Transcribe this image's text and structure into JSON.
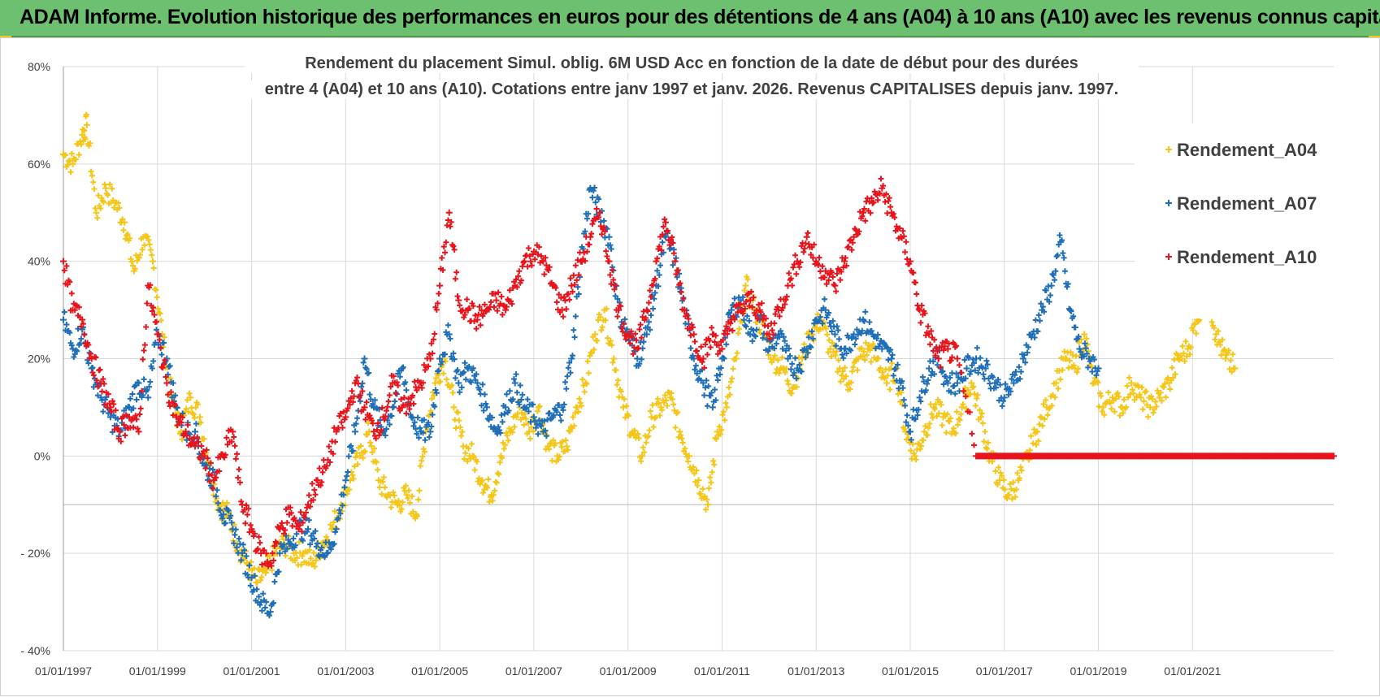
{
  "banner": {
    "title": "ADAM Informe. Evolution historique des performances en euros pour des détentions de 4 ans (A04) à 10 ans (A10) avec les revenus connus capitalisés"
  },
  "colors": {
    "banner_bg": "#6cc070",
    "a04": "#f5c518",
    "a07": "#1f6fb8",
    "a10": "#e8141c",
    "grid": "#d9d9d9",
    "axis_text": "#404040"
  },
  "chart_data": {
    "type": "scatter",
    "title_line1": "Rendement du placement Simul. oblig. 6M USD Acc en fonction de la date de début pour des durées",
    "title_line2": "entre 4 (A04) et 10 ans (A10). Cotations entre janv 1997 et janv. 2026. Revenus CAPITALISES depuis janv. 1997.",
    "xlabel": "",
    "ylabel": "",
    "x_range": [
      1997.0,
      2024.0
    ],
    "y_range": [
      -40,
      80
    ],
    "y_ticks": [
      80,
      60,
      40,
      20,
      0,
      -20,
      -40
    ],
    "y_tick_labels": [
      "80%",
      "60%",
      "40%",
      "20%",
      "0%",
      "- 20%",
      "- 40%"
    ],
    "x_ticks": [
      1997,
      1999,
      2001,
      2003,
      2005,
      2007,
      2009,
      2011,
      2013,
      2015,
      2017,
      2019,
      2021
    ],
    "x_tick_labels": [
      "01/01/1997",
      "01/01/1999",
      "01/01/2001",
      "01/01/2003",
      "01/01/2005",
      "01/01/2007",
      "01/01/2009",
      "01/01/2011",
      "01/01/2013",
      "01/01/2015",
      "01/01/2017",
      "01/01/2019",
      "01/01/2021"
    ],
    "legend_position": "right",
    "series": [
      {
        "name": "Rendement_A04",
        "color": "#f5c518",
        "x": [
          1997.0,
          1997.2,
          1997.4,
          1997.5,
          1997.7,
          1997.9,
          1998.1,
          1998.3,
          1998.5,
          1998.7,
          1998.9,
          1999.1,
          1999.3,
          1999.5,
          1999.7,
          1999.9,
          2000.1,
          2000.3,
          2000.5,
          2000.7,
          2000.9,
          2001.1,
          2001.3,
          2001.5,
          2001.7,
          2001.9,
          2002.1,
          2002.3,
          2002.5,
          2002.7,
          2002.9,
          2003.1,
          2003.3,
          2003.5,
          2003.7,
          2003.9,
          2004.1,
          2004.3,
          2004.5,
          2004.7,
          2004.9,
          2005.1,
          2005.3,
          2005.5,
          2005.7,
          2005.9,
          2006.1,
          2006.3,
          2006.5,
          2006.7,
          2006.9,
          2007.1,
          2007.3,
          2007.5,
          2007.7,
          2007.9,
          2008.1,
          2008.3,
          2008.5,
          2008.7,
          2008.9,
          2009.1,
          2009.3,
          2009.5,
          2009.7,
          2009.9,
          2010.1,
          2010.3,
          2010.5,
          2010.7,
          2010.9,
          2011.1,
          2011.3,
          2011.5,
          2011.7,
          2011.9,
          2012.1,
          2012.3,
          2012.5,
          2012.7,
          2012.9,
          2013.1,
          2013.3,
          2013.5,
          2013.7,
          2013.9,
          2014.1,
          2014.3,
          2014.5,
          2014.7,
          2014.9,
          2015.1,
          2015.3,
          2015.5,
          2015.7,
          2015.9,
          2016.1,
          2016.3,
          2016.5,
          2016.7,
          2016.9,
          2017.1,
          2017.3,
          2017.5,
          2017.7,
          2017.9,
          2018.1,
          2018.3,
          2018.5,
          2018.7,
          2018.9,
          2019.1,
          2019.3,
          2019.5,
          2019.7,
          2019.9,
          2020.1,
          2020.3,
          2020.5,
          2020.7,
          2020.9,
          2021.1,
          2021.3,
          2021.5,
          2021.7,
          2021.9
        ],
        "y": [
          62,
          60,
          66,
          68,
          50,
          55,
          52,
          48,
          38,
          45,
          40,
          25,
          12,
          5,
          12,
          8,
          -2,
          -10,
          -12,
          -18,
          -22,
          -26,
          -24,
          -20,
          -18,
          -20,
          -20,
          -22,
          -18,
          -15,
          -10,
          -5,
          0,
          5,
          -5,
          -8,
          -10,
          -8,
          -12,
          5,
          15,
          20,
          10,
          2,
          0,
          -5,
          -8,
          0,
          5,
          10,
          5,
          10,
          2,
          0,
          2,
          10,
          15,
          25,
          30,
          20,
          10,
          5,
          0,
          8,
          10,
          12,
          5,
          0,
          -5,
          -10,
          5,
          10,
          20,
          35,
          30,
          25,
          20,
          18,
          14,
          20,
          25,
          28,
          22,
          18,
          15,
          20,
          22,
          20,
          15,
          18,
          5,
          0,
          5,
          10,
          8,
          5,
          10,
          15,
          8,
          0,
          -5,
          -8,
          -5,
          0,
          5,
          10,
          15,
          20,
          18,
          25,
          15,
          10,
          12,
          10,
          15,
          12,
          10,
          12,
          15,
          20,
          22,
          28,
          35,
          25,
          20,
          18
        ],
        "y_note": "percent"
      },
      {
        "name": "Rendement_A07",
        "color": "#1f6fb8",
        "x": [
          1997.0,
          1997.2,
          1997.4,
          1997.6,
          1997.8,
          1998.0,
          1998.2,
          1998.4,
          1998.6,
          1998.8,
          1999.0,
          1999.2,
          1999.4,
          1999.6,
          1999.8,
          2000.0,
          2000.2,
          2000.4,
          2000.6,
          2000.8,
          2001.0,
          2001.2,
          2001.4,
          2001.6,
          2001.8,
          2002.0,
          2002.2,
          2002.4,
          2002.6,
          2002.8,
          2003.0,
          2003.2,
          2003.4,
          2003.6,
          2003.8,
          2004.0,
          2004.2,
          2004.4,
          2004.6,
          2004.8,
          2005.0,
          2005.2,
          2005.4,
          2005.6,
          2005.8,
          2006.0,
          2006.2,
          2006.4,
          2006.6,
          2006.8,
          2007.0,
          2007.2,
          2007.4,
          2007.6,
          2007.8,
          2008.0,
          2008.2,
          2008.4,
          2008.6,
          2008.8,
          2009.0,
          2009.2,
          2009.4,
          2009.6,
          2009.8,
          2010.0,
          2010.2,
          2010.4,
          2010.6,
          2010.8,
          2011.0,
          2011.2,
          2011.4,
          2011.6,
          2011.8,
          2012.0,
          2012.2,
          2012.4,
          2012.6,
          2012.8,
          2013.0,
          2013.2,
          2013.4,
          2013.6,
          2013.8,
          2014.0,
          2014.2,
          2014.4,
          2014.6,
          2014.8,
          2015.0,
          2015.2,
          2015.4,
          2015.6,
          2015.8,
          2016.0,
          2016.2,
          2016.4,
          2016.6,
          2016.8,
          2017.0,
          2017.2,
          2017.4,
          2017.6,
          2017.8,
          2018.0,
          2018.2,
          2018.4,
          2018.6,
          2018.8,
          2019.0
        ],
        "y": [
          28,
          22,
          26,
          18,
          12,
          8,
          5,
          10,
          15,
          12,
          25,
          20,
          10,
          5,
          5,
          -2,
          -5,
          -12,
          -15,
          -20,
          -25,
          -30,
          -32,
          -20,
          -18,
          -15,
          -15,
          -18,
          -20,
          -15,
          -5,
          5,
          20,
          10,
          5,
          10,
          18,
          8,
          5,
          5,
          20,
          25,
          15,
          18,
          15,
          10,
          5,
          10,
          15,
          10,
          8,
          5,
          8,
          10,
          20,
          40,
          55,
          50,
          45,
          30,
          25,
          20,
          25,
          35,
          45,
          40,
          30,
          20,
          15,
          10,
          20,
          30,
          32,
          25,
          28,
          22,
          25,
          20,
          18,
          22,
          28,
          30,
          25,
          22,
          25,
          28,
          25,
          22,
          20,
          15,
          5,
          12,
          18,
          20,
          15,
          15,
          18,
          20,
          18,
          15,
          12,
          15,
          20,
          25,
          30,
          35,
          44,
          30,
          22,
          20,
          18
        ],
        "y_note": "percent"
      },
      {
        "name": "Rendement_A10",
        "color": "#e8141c",
        "x": [
          1997.0,
          1997.2,
          1997.4,
          1997.6,
          1997.8,
          1998.0,
          1998.2,
          1998.4,
          1998.6,
          1998.8,
          1999.0,
          1999.2,
          1999.4,
          1999.6,
          1999.8,
          2000.0,
          2000.2,
          2000.4,
          2000.6,
          2000.8,
          2001.0,
          2001.2,
          2001.4,
          2001.6,
          2001.8,
          2002.0,
          2002.2,
          2002.4,
          2002.6,
          2002.8,
          2003.0,
          2003.2,
          2003.4,
          2003.6,
          2003.8,
          2004.0,
          2004.2,
          2004.4,
          2004.6,
          2004.8,
          2005.0,
          2005.2,
          2005.4,
          2005.6,
          2005.8,
          2006.0,
          2006.2,
          2006.4,
          2006.6,
          2006.8,
          2007.0,
          2007.2,
          2007.4,
          2007.6,
          2007.8,
          2008.0,
          2008.2,
          2008.4,
          2008.6,
          2008.8,
          2009.0,
          2009.2,
          2009.4,
          2009.6,
          2009.8,
          2010.0,
          2010.2,
          2010.4,
          2010.6,
          2010.8,
          2011.0,
          2011.2,
          2011.4,
          2011.6,
          2011.8,
          2012.0,
          2012.2,
          2012.4,
          2012.6,
          2012.8,
          2013.0,
          2013.2,
          2013.4,
          2013.6,
          2013.8,
          2014.0,
          2014.2,
          2014.4,
          2014.6,
          2014.8,
          2015.0,
          2015.2,
          2015.4,
          2015.6,
          2015.8,
          2016.0,
          2016.4,
          2016.8,
          2017.2,
          2017.6,
          2018.0,
          2018.4,
          2018.8,
          2019.2,
          2019.6,
          2020.0,
          2020.4,
          2020.8,
          2021.2,
          2021.6,
          2022.0,
          2022.4,
          2022.8,
          2023.2,
          2023.6,
          2024.0
        ],
        "y": [
          40,
          30,
          28,
          20,
          15,
          10,
          5,
          8,
          5,
          35,
          25,
          15,
          8,
          5,
          2,
          0,
          -5,
          0,
          5,
          -10,
          -15,
          -20,
          -22,
          -15,
          -12,
          -15,
          -10,
          -5,
          -2,
          5,
          8,
          15,
          10,
          5,
          8,
          15,
          10,
          12,
          15,
          20,
          35,
          50,
          32,
          30,
          28,
          30,
          32,
          30,
          35,
          40,
          42,
          40,
          35,
          30,
          35,
          40,
          45,
          50,
          40,
          30,
          25,
          22,
          30,
          40,
          48,
          40,
          30,
          25,
          20,
          25,
          22,
          28,
          30,
          32,
          30,
          25,
          30,
          35,
          40,
          45,
          40,
          38,
          35,
          40,
          45,
          50,
          52,
          55,
          50,
          45,
          40,
          30,
          25,
          20,
          22,
          20,
          0,
          0,
          0,
          0,
          0,
          0,
          0,
          0,
          0,
          0,
          0,
          0,
          0,
          0,
          0,
          0,
          0,
          0,
          0,
          0
        ],
        "y_note": "percent"
      }
    ]
  }
}
